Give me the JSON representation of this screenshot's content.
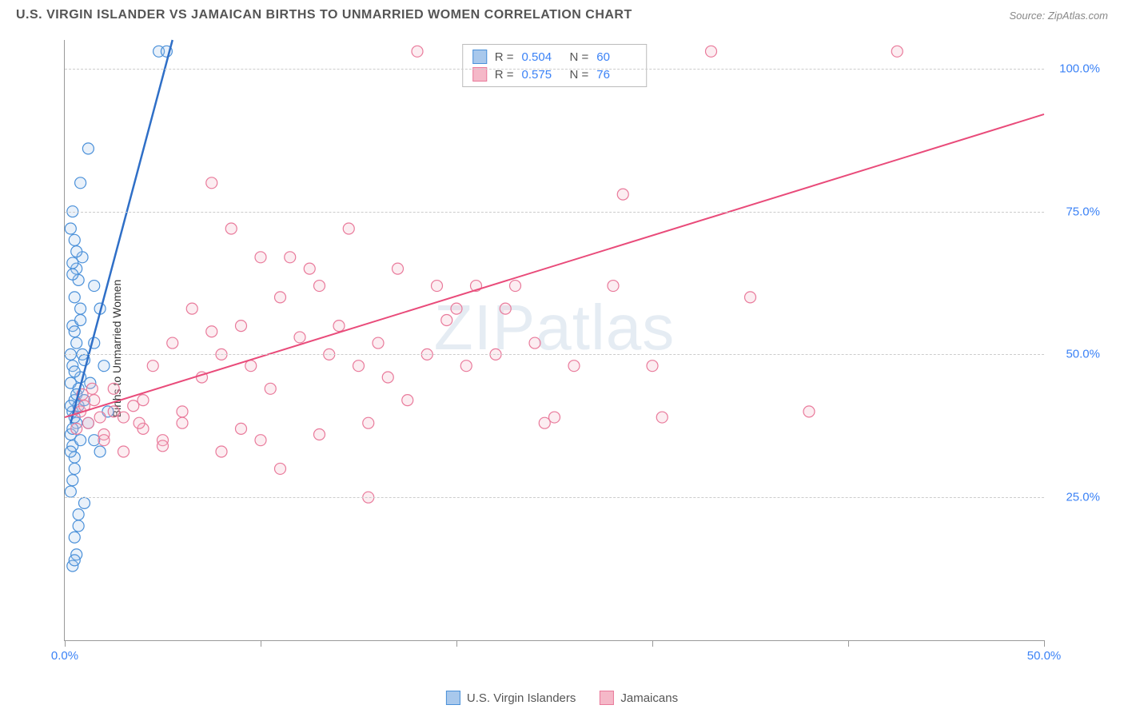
{
  "title": "U.S. VIRGIN ISLANDER VS JAMAICAN BIRTHS TO UNMARRIED WOMEN CORRELATION CHART",
  "source": "Source: ZipAtlas.com",
  "ylabel": "Births to Unmarried Women",
  "watermark": "ZIPatlas",
  "chart": {
    "type": "scatter",
    "xlim": [
      0,
      50
    ],
    "ylim": [
      0,
      105
    ],
    "xtick_step": 10,
    "ytick_values": [
      25,
      50,
      75,
      100
    ],
    "ytick_labels": [
      "25.0%",
      "50.0%",
      "75.0%",
      "100.0%"
    ],
    "xtick_labels": [
      "0.0%",
      "",
      "",
      "",
      "",
      "50.0%"
    ],
    "grid_color": "#cccccc",
    "axis_color": "#999999",
    "background_color": "#ffffff",
    "marker_radius": 7,
    "series": [
      {
        "name": "U.S. Virgin Islanders",
        "color_fill": "#a8c8ec",
        "color_stroke": "#4a90d9",
        "R": "0.504",
        "N": "60",
        "regression": {
          "x1": 0.3,
          "y1": 38,
          "x2": 5.5,
          "y2": 105,
          "color": "#2f6fc7",
          "width": 2.5
        },
        "points": [
          [
            0.3,
            36
          ],
          [
            0.4,
            40
          ],
          [
            0.5,
            42
          ],
          [
            0.3,
            45
          ],
          [
            0.6,
            38
          ],
          [
            0.4,
            34
          ],
          [
            0.5,
            32
          ],
          [
            0.7,
            44
          ],
          [
            0.4,
            48
          ],
          [
            0.3,
            41
          ],
          [
            0.6,
            43
          ],
          [
            0.8,
            46
          ],
          [
            0.5,
            39
          ],
          [
            0.4,
            37
          ],
          [
            0.7,
            41
          ],
          [
            0.3,
            33
          ],
          [
            0.5,
            47
          ],
          [
            0.9,
            50
          ],
          [
            0.6,
            52
          ],
          [
            0.4,
            55
          ],
          [
            0.8,
            58
          ],
          [
            1.0,
            49
          ],
          [
            0.5,
            60
          ],
          [
            0.7,
            63
          ],
          [
            0.6,
            65
          ],
          [
            0.9,
            67
          ],
          [
            0.4,
            64
          ],
          [
            1.2,
            38
          ],
          [
            1.0,
            42
          ],
          [
            1.3,
            45
          ],
          [
            0.5,
            30
          ],
          [
            0.4,
            28
          ],
          [
            0.3,
            26
          ],
          [
            1.5,
            35
          ],
          [
            0.8,
            35
          ],
          [
            1.8,
            33
          ],
          [
            2.0,
            48
          ],
          [
            1.5,
            52
          ],
          [
            2.2,
            40
          ],
          [
            0.7,
            20
          ],
          [
            0.5,
            18
          ],
          [
            0.6,
            15
          ],
          [
            0.4,
            13
          ],
          [
            0.5,
            14
          ],
          [
            0.8,
            80
          ],
          [
            1.2,
            86
          ],
          [
            4.8,
            103
          ],
          [
            5.2,
            103
          ],
          [
            0.3,
            72
          ],
          [
            0.4,
            75
          ],
          [
            0.5,
            70
          ],
          [
            0.6,
            68
          ],
          [
            0.4,
            66
          ],
          [
            0.7,
            22
          ],
          [
            1.0,
            24
          ],
          [
            1.5,
            62
          ],
          [
            1.8,
            58
          ],
          [
            0.3,
            50
          ],
          [
            0.5,
            54
          ],
          [
            0.8,
            56
          ]
        ]
      },
      {
        "name": "Jamaicans",
        "color_fill": "#f5b8c8",
        "color_stroke": "#e97a9b",
        "R": "0.575",
        "N": "76",
        "regression": {
          "x1": 0,
          "y1": 39,
          "x2": 50,
          "y2": 92,
          "color": "#e94b7a",
          "width": 2
        },
        "points": [
          [
            0.8,
            40
          ],
          [
            1.2,
            38
          ],
          [
            1.5,
            42
          ],
          [
            2.0,
            36
          ],
          [
            2.5,
            44
          ],
          [
            3.0,
            39
          ],
          [
            3.5,
            41
          ],
          [
            4.0,
            37
          ],
          [
            4.5,
            48
          ],
          [
            5.0,
            35
          ],
          [
            5.5,
            52
          ],
          [
            6.0,
            38
          ],
          [
            6.5,
            58
          ],
          [
            7.0,
            46
          ],
          [
            7.5,
            80
          ],
          [
            8.0,
            50
          ],
          [
            8.5,
            72
          ],
          [
            9.0,
            55
          ],
          [
            9.5,
            48
          ],
          [
            10.0,
            67
          ],
          [
            10.5,
            44
          ],
          [
            11.0,
            60
          ],
          [
            11.5,
            67
          ],
          [
            12.0,
            53
          ],
          [
            12.5,
            65
          ],
          [
            13.0,
            62
          ],
          [
            13.5,
            50
          ],
          [
            14.0,
            55
          ],
          [
            14.5,
            72
          ],
          [
            15.0,
            48
          ],
          [
            15.5,
            38
          ],
          [
            16.0,
            52
          ],
          [
            16.5,
            46
          ],
          [
            17.0,
            65
          ],
          [
            17.5,
            42
          ],
          [
            18.0,
            103
          ],
          [
            18.5,
            50
          ],
          [
            19.0,
            62
          ],
          [
            19.5,
            56
          ],
          [
            20.0,
            58
          ],
          [
            20.5,
            48
          ],
          [
            21.0,
            62
          ],
          [
            22.0,
            50
          ],
          [
            22.5,
            58
          ],
          [
            23.0,
            62
          ],
          [
            24.0,
            52
          ],
          [
            24.5,
            38
          ],
          [
            25.0,
            39
          ],
          [
            26.0,
            48
          ],
          [
            15.5,
            25
          ],
          [
            11.0,
            30
          ],
          [
            10.0,
            35
          ],
          [
            8.0,
            33
          ],
          [
            5.0,
            34
          ],
          [
            3.0,
            33
          ],
          [
            2.0,
            35
          ],
          [
            6.0,
            40
          ],
          [
            7.5,
            54
          ],
          [
            28.0,
            62
          ],
          [
            28.5,
            78
          ],
          [
            30.0,
            48
          ],
          [
            30.5,
            39
          ],
          [
            33.0,
            103
          ],
          [
            35.0,
            60
          ],
          [
            38.0,
            40
          ],
          [
            42.5,
            103
          ],
          [
            2.5,
            40
          ],
          [
            4.0,
            42
          ],
          [
            1.0,
            41
          ],
          [
            1.8,
            39
          ],
          [
            0.6,
            37
          ],
          [
            0.9,
            43
          ],
          [
            1.4,
            44
          ],
          [
            3.8,
            38
          ],
          [
            9.0,
            37
          ],
          [
            13.0,
            36
          ]
        ]
      }
    ]
  },
  "legend_bottom": [
    {
      "swatch_fill": "#a8c8ec",
      "swatch_stroke": "#4a90d9",
      "label": "U.S. Virgin Islanders"
    },
    {
      "swatch_fill": "#f5b8c8",
      "swatch_stroke": "#e97a9b",
      "label": "Jamaicans"
    }
  ]
}
